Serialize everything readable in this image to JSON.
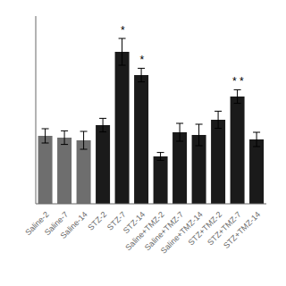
{
  "chart_data": {
    "type": "bar",
    "categories": [
      "Saline-2",
      "Saline-7",
      "Saline-14",
      "STZ-2",
      "STZ-7",
      "STZ-14",
      "Saline+TMZ-2",
      "Saline+TMZ-7",
      "Saline+TMZ-14",
      "STZ+TMZ-2",
      "STZ+TMZ-7",
      "STZ+TMZ-14"
    ],
    "values": [
      0.38,
      0.37,
      0.355,
      0.44,
      0.85,
      0.72,
      0.265,
      0.4,
      0.385,
      0.47,
      0.6,
      0.36
    ],
    "errors": [
      0.04,
      0.038,
      0.05,
      0.038,
      0.075,
      0.038,
      0.022,
      0.05,
      0.06,
      0.048,
      0.038,
      0.04
    ],
    "colors": [
      "#6e6e6e",
      "#6e6e6e",
      "#6e6e6e",
      "#1a1a1a",
      "#1a1a1a",
      "#1a1a1a",
      "#1a1a1a",
      "#1a1a1a",
      "#1a1a1a",
      "#1a1a1a",
      "#1a1a1a",
      "#1a1a1a"
    ],
    "annotations": [
      {
        "x": "STZ-7",
        "text": "*"
      },
      {
        "x": "STZ-14",
        "text": "*"
      },
      {
        "x": "STZ+TMZ-7",
        "text": "* *"
      }
    ],
    "ylim": [
      0,
      1.05
    ],
    "tick_labels": "x",
    "grid": false
  }
}
